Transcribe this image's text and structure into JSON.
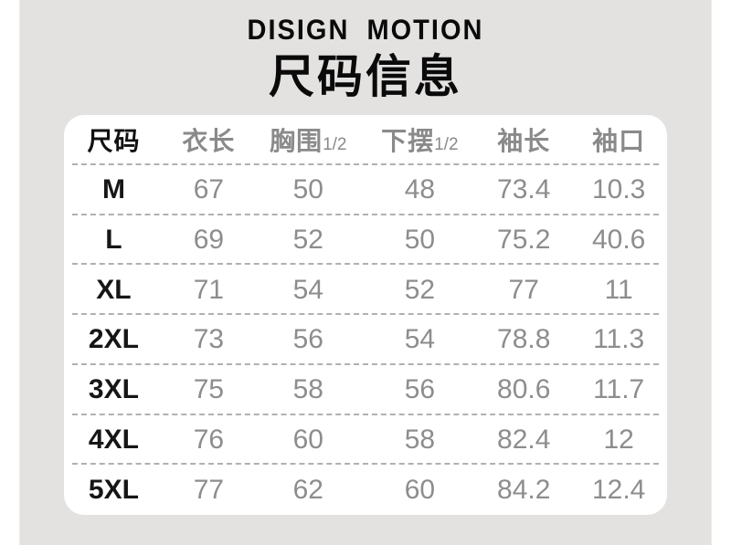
{
  "page": {
    "brand": "DISIGN MOTION",
    "title": "尺码信息"
  },
  "colors": {
    "panel_background": "#e3e2e1",
    "card_background": "#ffffff",
    "text_primary": "#0a0a0a",
    "text_secondary": "#8a8a8a",
    "separator": "#b0b0b0"
  },
  "size_chart": {
    "columns": [
      {
        "label": "尺码",
        "suffix": ""
      },
      {
        "label": "衣长",
        "suffix": ""
      },
      {
        "label": "胸围",
        "suffix": "1/2"
      },
      {
        "label": "下摆",
        "suffix": "1/2"
      },
      {
        "label": "袖长",
        "suffix": ""
      },
      {
        "label": "袖口",
        "suffix": ""
      }
    ],
    "rows": [
      {
        "size": "M",
        "values": [
          "67",
          "50",
          "48",
          "73.4",
          "10.3"
        ]
      },
      {
        "size": "L",
        "values": [
          "69",
          "52",
          "50",
          "75.2",
          "40.6"
        ]
      },
      {
        "size": "XL",
        "values": [
          "71",
          "54",
          "52",
          "77",
          "11"
        ]
      },
      {
        "size": "2XL",
        "values": [
          "73",
          "56",
          "54",
          "78.8",
          "11.3"
        ]
      },
      {
        "size": "3XL",
        "values": [
          "75",
          "58",
          "56",
          "80.6",
          "11.7"
        ]
      },
      {
        "size": "4XL",
        "values": [
          "76",
          "60",
          "58",
          "82.4",
          "12"
        ]
      },
      {
        "size": "5XL",
        "values": [
          "77",
          "62",
          "60",
          "84.2",
          "12.4"
        ]
      }
    ]
  },
  "chart_data": {
    "type": "table",
    "title": "尺码信息",
    "subtitle": "DISIGN MOTION",
    "columns": [
      "尺码",
      "衣长",
      "胸围1/2",
      "下摆1/2",
      "袖长",
      "袖口"
    ],
    "rows": [
      [
        "M",
        67,
        50,
        48,
        73.4,
        10.3
      ],
      [
        "L",
        69,
        52,
        50,
        75.2,
        40.6
      ],
      [
        "XL",
        71,
        54,
        52,
        77,
        11
      ],
      [
        "2XL",
        73,
        56,
        54,
        78.8,
        11.3
      ],
      [
        "3XL",
        75,
        58,
        56,
        80.6,
        11.7
      ],
      [
        "4XL",
        76,
        60,
        58,
        82.4,
        12
      ],
      [
        "5XL",
        77,
        62,
        60,
        84.2,
        12.4
      ]
    ]
  }
}
